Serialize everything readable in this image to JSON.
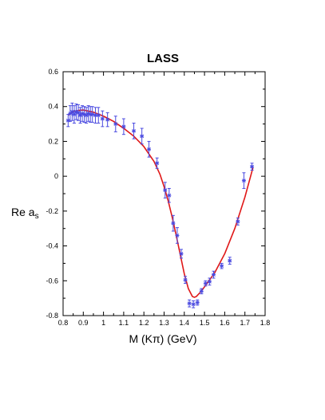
{
  "chart_data": {
    "type": "scatter",
    "title": "LASS",
    "xlabel": "M (Kπ) (GeV)",
    "ylabel": {
      "main": "Re a",
      "sub": "s"
    },
    "xlim": [
      0.8,
      1.8
    ],
    "ylim": [
      -0.8,
      0.6
    ],
    "xticks": [
      "0.8",
      "0.9",
      "1",
      "1.1",
      "1.2",
      "1.3",
      "1.4",
      "1.5",
      "1.6",
      "1.7",
      "1.8"
    ],
    "yticks": [
      "0.6",
      "0.4",
      "0.2",
      "0",
      "-0.2",
      "-0.4",
      "-0.6",
      "-0.8"
    ],
    "grid": false,
    "colors": {
      "points": "#4a4ae0",
      "fit": "#e01818",
      "axes": "#000000"
    },
    "series": [
      {
        "kind": "points_with_error_bars",
        "points": [
          {
            "x": 0.825,
            "y": 0.32,
            "err": 0.035
          },
          {
            "x": 0.835,
            "y": 0.36,
            "err": 0.045
          },
          {
            "x": 0.845,
            "y": 0.37,
            "err": 0.05
          },
          {
            "x": 0.855,
            "y": 0.355,
            "err": 0.05
          },
          {
            "x": 0.865,
            "y": 0.37,
            "err": 0.045
          },
          {
            "x": 0.875,
            "y": 0.365,
            "err": 0.045
          },
          {
            "x": 0.885,
            "y": 0.35,
            "err": 0.045
          },
          {
            "x": 0.895,
            "y": 0.36,
            "err": 0.045
          },
          {
            "x": 0.905,
            "y": 0.355,
            "err": 0.045
          },
          {
            "x": 0.915,
            "y": 0.35,
            "err": 0.045
          },
          {
            "x": 0.925,
            "y": 0.36,
            "err": 0.045
          },
          {
            "x": 0.935,
            "y": 0.355,
            "err": 0.045
          },
          {
            "x": 0.945,
            "y": 0.355,
            "err": 0.045
          },
          {
            "x": 0.96,
            "y": 0.35,
            "err": 0.045
          },
          {
            "x": 0.975,
            "y": 0.35,
            "err": 0.045
          },
          {
            "x": 0.995,
            "y": 0.33,
            "err": 0.045
          },
          {
            "x": 1.02,
            "y": 0.325,
            "err": 0.04
          },
          {
            "x": 1.06,
            "y": 0.3,
            "err": 0.045
          },
          {
            "x": 1.1,
            "y": 0.285,
            "err": 0.045
          },
          {
            "x": 1.15,
            "y": 0.26,
            "err": 0.045
          },
          {
            "x": 1.19,
            "y": 0.23,
            "err": 0.045
          },
          {
            "x": 1.225,
            "y": 0.155,
            "err": 0.045
          },
          {
            "x": 1.265,
            "y": 0.075,
            "err": 0.03
          },
          {
            "x": 1.305,
            "y": -0.08,
            "err": 0.045
          },
          {
            "x": 1.325,
            "y": -0.11,
            "err": 0.04
          },
          {
            "x": 1.345,
            "y": -0.27,
            "err": 0.045
          },
          {
            "x": 1.365,
            "y": -0.34,
            "err": 0.045
          },
          {
            "x": 1.385,
            "y": -0.445,
            "err": 0.025
          },
          {
            "x": 1.405,
            "y": -0.595,
            "err": 0.02
          },
          {
            "x": 1.425,
            "y": -0.73,
            "err": 0.02
          },
          {
            "x": 1.445,
            "y": -0.735,
            "err": 0.02
          },
          {
            "x": 1.465,
            "y": -0.725,
            "err": 0.015
          },
          {
            "x": 1.485,
            "y": -0.66,
            "err": 0.015
          },
          {
            "x": 1.505,
            "y": -0.615,
            "err": 0.015
          },
          {
            "x": 1.525,
            "y": -0.605,
            "err": 0.02
          },
          {
            "x": 1.545,
            "y": -0.565,
            "err": 0.02
          },
          {
            "x": 1.585,
            "y": -0.515,
            "err": 0.015
          },
          {
            "x": 1.625,
            "y": -0.485,
            "err": 0.02
          },
          {
            "x": 1.665,
            "y": -0.26,
            "err": 0.02
          },
          {
            "x": 1.695,
            "y": -0.025,
            "err": 0.045
          },
          {
            "x": 1.735,
            "y": 0.055,
            "err": 0.02
          }
        ]
      },
      {
        "kind": "fit_curve",
        "x": [
          0.825,
          0.85,
          0.875,
          0.9,
          0.95,
          1.0,
          1.05,
          1.1,
          1.15,
          1.2,
          1.25,
          1.28,
          1.3,
          1.32,
          1.34,
          1.36,
          1.38,
          1.4,
          1.42,
          1.44,
          1.45,
          1.46,
          1.48,
          1.5,
          1.55,
          1.6,
          1.65,
          1.7,
          1.74
        ],
        "y": [
          0.35,
          0.37,
          0.378,
          0.38,
          0.368,
          0.345,
          0.315,
          0.275,
          0.23,
          0.17,
          0.085,
          0.01,
          -0.06,
          -0.14,
          -0.235,
          -0.34,
          -0.45,
          -0.56,
          -0.645,
          -0.69,
          -0.695,
          -0.69,
          -0.665,
          -0.635,
          -0.555,
          -0.445,
          -0.3,
          -0.12,
          0.05
        ]
      }
    ]
  }
}
